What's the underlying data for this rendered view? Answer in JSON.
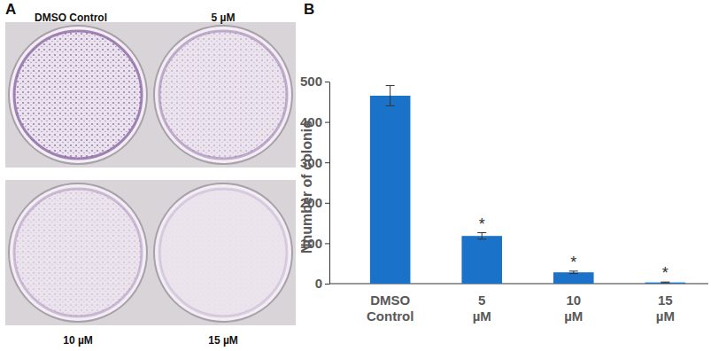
{
  "panel_labels": [
    "A",
    "B"
  ],
  "photos": {
    "labels": [
      "DMSO Control",
      "5 µM",
      "10 µM",
      "15 µM"
    ]
  },
  "chart_data": {
    "type": "bar",
    "y_label": "Nnumber of colonie",
    "categories": [
      "DMSO Control",
      "5 µM",
      "10 µM",
      "15 µM"
    ],
    "values": [
      465,
      118,
      28,
      3
    ],
    "errors": [
      25,
      8,
      3,
      1
    ],
    "annotations": [
      null,
      "*",
      "*",
      "*"
    ],
    "color": "#1a73c9",
    "ylim": [
      0,
      500
    ],
    "yticks": [
      0,
      100,
      200,
      300,
      400,
      500
    ],
    "grid": false
  }
}
